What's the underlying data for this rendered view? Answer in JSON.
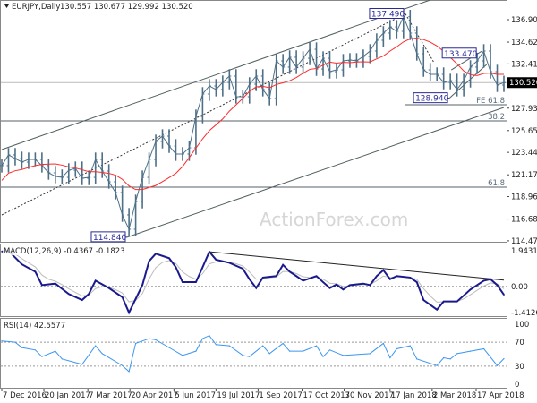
{
  "header": {
    "symbol_label": "EURJPY,Daily",
    "ohlc": "130.557 130.677 129.992 130.520",
    "watermark": "ActionForex.com"
  },
  "colors": {
    "candle": "#4d7088",
    "moving_average": "#ff2a2a",
    "channel_line": "#4f5f5f",
    "macd": "#1a1a8c",
    "macd_signal": "#bdbdbd",
    "rsi": "#3c96f0",
    "label_box": "#2a2a9a",
    "current_price_bg": "#000000"
  },
  "chart_data": [
    {
      "type": "line",
      "panel": "price",
      "title": "EURJPY,Daily",
      "ylim": [
        114.475,
        136.9
      ],
      "y_ticks": [
        "136.900",
        "134.625",
        "132.415",
        "127.930",
        "125.655",
        "123.445",
        "121.170",
        "118.960",
        "116.685",
        "114.475"
      ],
      "current_price": "130.520",
      "x_ticks": [
        "7 Dec 2016",
        "20 Jan 2017",
        "7 Mar 2017",
        "20 Apr 2017",
        "5 Jun 2017",
        "19 Jul 2017",
        "1 Sep 2017",
        "17 Oct 2017",
        "30 Nov 2017",
        "17 Jan 2018",
        "2 Mar 2018",
        "17 Apr 2018"
      ],
      "dates": [
        "2016-12-07",
        "2016-12-14",
        "2016-12-21",
        "2016-12-28",
        "2017-01-04",
        "2017-01-11",
        "2017-01-18",
        "2017-01-25",
        "2017-02-01",
        "2017-02-08",
        "2017-02-15",
        "2017-02-22",
        "2017-03-01",
        "2017-03-08",
        "2017-03-15",
        "2017-03-22",
        "2017-03-29",
        "2017-04-05",
        "2017-04-12",
        "2017-04-19",
        "2017-04-26",
        "2017-05-03",
        "2017-05-10",
        "2017-05-17",
        "2017-05-24",
        "2017-05-31",
        "2017-06-07",
        "2017-06-14",
        "2017-06-21",
        "2017-06-28",
        "2017-07-05",
        "2017-07-12",
        "2017-07-19",
        "2017-07-26",
        "2017-08-02",
        "2017-08-09",
        "2017-08-16",
        "2017-08-23",
        "2017-08-30",
        "2017-09-06",
        "2017-09-13",
        "2017-09-20",
        "2017-09-27",
        "2017-10-04",
        "2017-10-11",
        "2017-10-18",
        "2017-10-25",
        "2017-11-01",
        "2017-11-08",
        "2017-11-15",
        "2017-11-22",
        "2017-11-29",
        "2017-12-06",
        "2017-12-13",
        "2017-12-20",
        "2017-12-27",
        "2018-01-03",
        "2018-01-10",
        "2018-01-17",
        "2018-01-24",
        "2018-01-31",
        "2018-02-07",
        "2018-02-14",
        "2018-02-21",
        "2018-02-28",
        "2018-03-07",
        "2018-03-14",
        "2018-03-21",
        "2018-03-28",
        "2018-04-04",
        "2018-04-11",
        "2018-04-18",
        "2018-04-25",
        "2018-05-02",
        "2018-05-09",
        "2018-05-16"
      ],
      "close": [
        122.1,
        123.19,
        122.82,
        122.46,
        122.73,
        122.73,
        122.1,
        121.37,
        121.01,
        120.91,
        121.64,
        121.82,
        120.82,
        120.91,
        122.73,
        121.55,
        120.46,
        119.37,
        117.1,
        115.65,
        118.46,
        120.91,
        122.73,
        124.55,
        125.09,
        124.09,
        123.28,
        123.28,
        123.91,
        127.09,
        129.36,
        130.18,
        129.82,
        130.54,
        131.18,
        129.09,
        129.09,
        130.36,
        131.18,
        129.82,
        128.91,
        132.72,
        132.09,
        133.09,
        132.09,
        132.99,
        133.9,
        131.9,
        132.99,
        131.63,
        131.81,
        132.72,
        132.81,
        132.72,
        133.18,
        133.72,
        134.81,
        135.54,
        136.17,
        135.72,
        137.2,
        135.54,
        133.45,
        131.81,
        131.36,
        131.36,
        130.54,
        130.72,
        129.82,
        130.72,
        132.09,
        132.72,
        133.72,
        131.63,
        130.27,
        130.52
      ],
      "levels": [
        {
          "price": 130.52,
          "label": ""
        },
        {
          "price": 126.64,
          "label": "38.2"
        },
        {
          "price": 119.92,
          "label": "61.8"
        },
        {
          "price": 128.27,
          "label": "FE 61.8",
          "from": "2018-02-02"
        }
      ],
      "trend_lines": [
        {
          "from": [
            "2016-12-07",
            123.73
          ],
          "to": [
            "2018-02-28",
            138.9
          ],
          "style": "solid"
        },
        {
          "from": [
            "2017-04-17",
            114.84
          ],
          "to": [
            "2018-05-16",
            128.0
          ],
          "style": "solid"
        },
        {
          "from": [
            "2016-12-07",
            117.1
          ],
          "to": [
            "2018-02-02",
            137.49
          ],
          "style": "dotted"
        },
        {
          "from": [
            "2018-02-02",
            137.49
          ],
          "to": [
            "2018-03-04",
            132.54
          ],
          "style": "dotted"
        },
        {
          "from": [
            "2018-03-22",
            131.81
          ],
          "to": [
            "2018-04-23",
            133.72
          ],
          "style": "solid"
        },
        {
          "from": [
            "2018-03-20",
            128.94
          ],
          "to": [
            "2018-04-28",
            132.36
          ],
          "style": "solid"
        }
      ],
      "price_labels": [
        {
          "date": "2018-02-02",
          "price": 137.49,
          "text": "137.490"
        },
        {
          "date": "2018-04-19",
          "price": 133.47,
          "text": "133.470"
        },
        {
          "date": "2018-03-20",
          "price": 128.94,
          "text": "128.940"
        },
        {
          "date": "2017-04-17",
          "price": 114.84,
          "text": "114.840"
        }
      ]
    },
    {
      "type": "line",
      "panel": "macd",
      "title": "MACD(12,26,9) -0.4367 -0.1823",
      "ylim": [
        -1.4126,
        1.9431
      ],
      "y_ticks": [
        "1.9431",
        "0.00",
        "-1.4126"
      ],
      "points": [
        [
          "2016-12-07",
          1.9
        ],
        [
          "2016-12-14",
          1.94
        ],
        [
          "2016-12-28",
          1.21
        ],
        [
          "2017-01-11",
          0.81
        ],
        [
          "2017-01-18",
          0.08
        ],
        [
          "2017-02-01",
          0.16
        ],
        [
          "2017-02-15",
          -0.4
        ],
        [
          "2017-03-01",
          -0.73
        ],
        [
          "2017-03-08",
          -0.4
        ],
        [
          "2017-03-15",
          0.32
        ],
        [
          "2017-03-29",
          -0.08
        ],
        [
          "2017-04-12",
          -0.57
        ],
        [
          "2017-04-19",
          -1.41
        ],
        [
          "2017-05-03",
          0.08
        ],
        [
          "2017-05-10",
          1.38
        ],
        [
          "2017-05-17",
          1.78
        ],
        [
          "2017-05-31",
          1.54
        ],
        [
          "2017-06-07",
          1.05
        ],
        [
          "2017-06-14",
          0.24
        ],
        [
          "2017-06-28",
          0.24
        ],
        [
          "2017-07-05",
          1.05
        ],
        [
          "2017-07-12",
          1.89
        ],
        [
          "2017-07-19",
          1.46
        ],
        [
          "2017-08-02",
          1.29
        ],
        [
          "2017-08-16",
          0.97
        ],
        [
          "2017-08-23",
          0.4
        ],
        [
          "2017-08-30",
          -0.08
        ],
        [
          "2017-09-06",
          0.49
        ],
        [
          "2017-09-20",
          0.57
        ],
        [
          "2017-09-27",
          1.18
        ],
        [
          "2017-10-04",
          0.81
        ],
        [
          "2017-10-11",
          0.57
        ],
        [
          "2017-10-18",
          0.32
        ],
        [
          "2017-11-01",
          0.57
        ],
        [
          "2017-11-08",
          0.24
        ],
        [
          "2017-11-15",
          -0.08
        ],
        [
          "2017-11-22",
          0.11
        ],
        [
          "2017-11-29",
          -0.16
        ],
        [
          "2017-12-06",
          0.08
        ],
        [
          "2017-12-20",
          0.16
        ],
        [
          "2017-12-27",
          0.08
        ],
        [
          "2018-01-03",
          0.57
        ],
        [
          "2018-01-10",
          0.89
        ],
        [
          "2018-01-17",
          0.4
        ],
        [
          "2018-01-24",
          0.57
        ],
        [
          "2018-02-07",
          0.49
        ],
        [
          "2018-02-14",
          0.24
        ],
        [
          "2018-02-21",
          -0.73
        ],
        [
          "2018-03-07",
          -1.25
        ],
        [
          "2018-03-14",
          -0.81
        ],
        [
          "2018-03-28",
          -0.81
        ],
        [
          "2018-04-11",
          -0.16
        ],
        [
          "2018-04-25",
          0.32
        ],
        [
          "2018-05-02",
          0.4
        ],
        [
          "2018-05-09",
          0.08
        ],
        [
          "2018-05-16",
          -0.44
        ]
      ],
      "trend_line": {
        "from": [
          "2017-07-12",
          1.89
        ],
        "to": [
          "2018-05-16",
          0.35
        ]
      }
    },
    {
      "type": "line",
      "panel": "rsi",
      "title": "RSI(14) 42.5577",
      "ylim": [
        0,
        100
      ],
      "y_ticks": [
        "100",
        "70",
        "30",
        "0"
      ],
      "guide_levels": [
        70,
        30
      ],
      "points": [
        [
          "2016-12-07",
          72
        ],
        [
          "2016-12-21",
          70
        ],
        [
          "2016-12-28",
          61
        ],
        [
          "2017-01-11",
          57
        ],
        [
          "2017-01-18",
          46
        ],
        [
          "2017-02-01",
          55
        ],
        [
          "2017-02-08",
          42
        ],
        [
          "2017-03-01",
          33
        ],
        [
          "2017-03-15",
          64
        ],
        [
          "2017-03-22",
          51
        ],
        [
          "2017-04-12",
          31
        ],
        [
          "2017-04-19",
          21
        ],
        [
          "2017-04-26",
          68
        ],
        [
          "2017-05-10",
          76
        ],
        [
          "2017-05-17",
          74
        ],
        [
          "2017-05-31",
          61
        ],
        [
          "2017-06-14",
          48
        ],
        [
          "2017-06-28",
          55
        ],
        [
          "2017-07-05",
          76
        ],
        [
          "2017-07-12",
          81
        ],
        [
          "2017-07-19",
          66
        ],
        [
          "2017-08-02",
          64
        ],
        [
          "2017-08-16",
          48
        ],
        [
          "2017-08-23",
          46
        ],
        [
          "2017-09-06",
          64
        ],
        [
          "2017-09-13",
          51
        ],
        [
          "2017-09-27",
          68
        ],
        [
          "2017-10-04",
          55
        ],
        [
          "2017-10-18",
          55
        ],
        [
          "2017-11-01",
          64
        ],
        [
          "2017-11-08",
          46
        ],
        [
          "2017-11-15",
          57
        ],
        [
          "2017-11-29",
          48
        ],
        [
          "2017-12-27",
          51
        ],
        [
          "2018-01-10",
          68
        ],
        [
          "2018-01-17",
          44
        ],
        [
          "2018-01-24",
          59
        ],
        [
          "2018-02-07",
          64
        ],
        [
          "2018-02-14",
          42
        ],
        [
          "2018-03-07",
          31
        ],
        [
          "2018-03-14",
          44
        ],
        [
          "2018-03-21",
          42
        ],
        [
          "2018-03-28",
          51
        ],
        [
          "2018-04-11",
          55
        ],
        [
          "2018-04-25",
          59
        ],
        [
          "2018-05-09",
          31
        ],
        [
          "2018-05-16",
          42.56
        ]
      ]
    }
  ]
}
